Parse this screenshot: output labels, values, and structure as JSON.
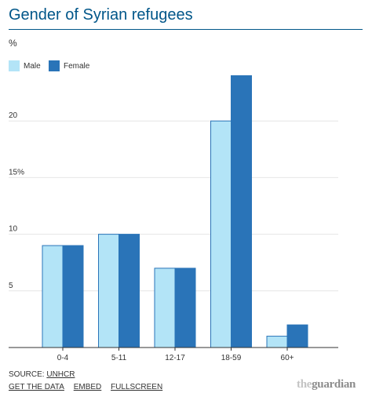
{
  "header": {
    "title": "Gender of Syrian refugees",
    "unit": "%"
  },
  "colors": {
    "title": "#005689",
    "male": "#b3e4f7",
    "female": "#2a74b8",
    "bar_stroke": "#2a74b8",
    "grid": "#e6e6e6",
    "axis": "#333333"
  },
  "chart_data": {
    "type": "bar",
    "title": "Gender of Syrian refugees",
    "ylabel": "%",
    "xlabel": "",
    "categories": [
      "0-4",
      "5-11",
      "12-17",
      "18-59",
      "60+"
    ],
    "series": [
      {
        "name": "Male",
        "values": [
          9,
          10,
          7,
          20,
          1
        ]
      },
      {
        "name": "Female",
        "values": [
          9,
          10,
          7,
          24,
          2
        ]
      }
    ],
    "ylim": [
      0,
      25
    ],
    "yticks": [
      {
        "value": 5,
        "label": "5"
      },
      {
        "value": 10,
        "label": "10"
      },
      {
        "value": 15,
        "label": "15%"
      },
      {
        "value": 20,
        "label": "20"
      }
    ],
    "grid": true,
    "legend": "top-left"
  },
  "footer": {
    "source_prefix": "SOURCE:",
    "source_link": "UNHCR",
    "links": [
      "GET THE DATA",
      "EMBED",
      "FULLSCREEN"
    ]
  },
  "logo": {
    "the": "the",
    "guardian": "guardian"
  }
}
